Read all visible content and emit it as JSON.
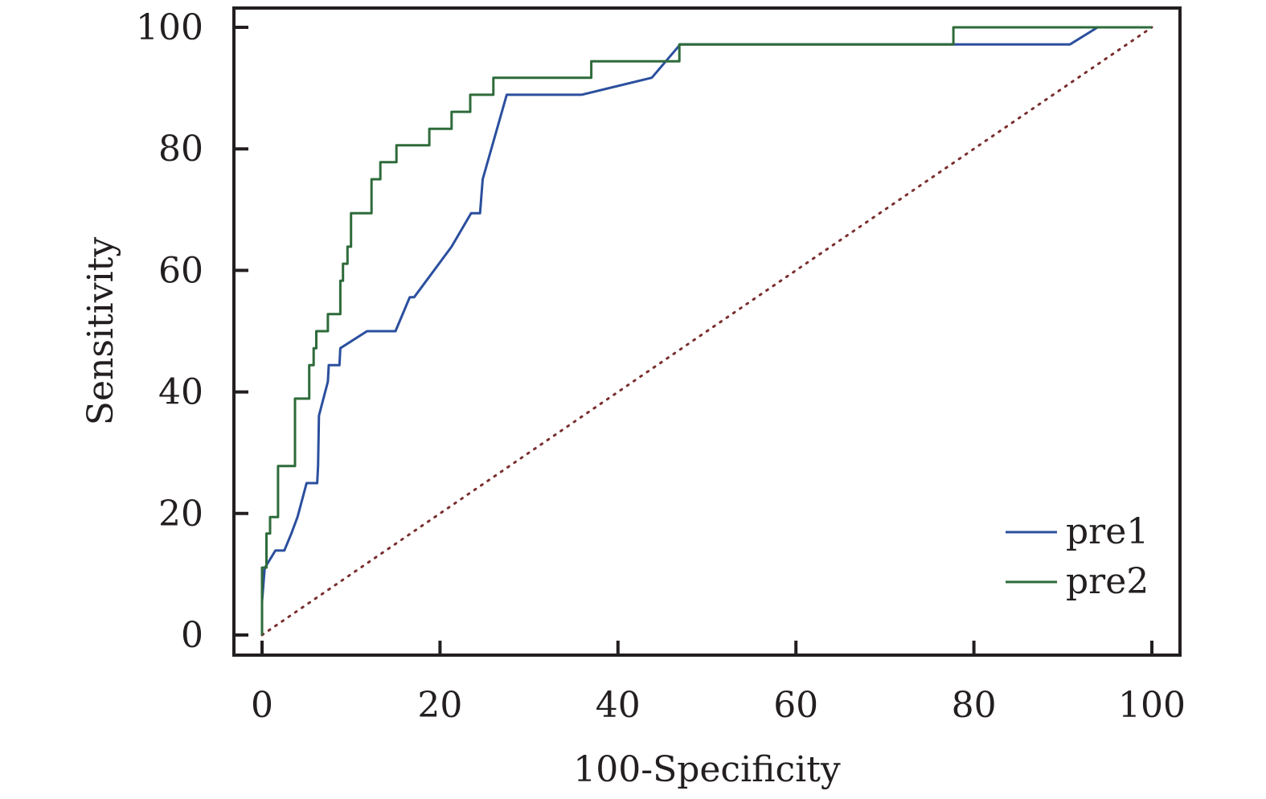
{
  "chart_data": {
    "type": "line",
    "title": "",
    "xlabel": "100-Specificity",
    "ylabel": "Sensitivity",
    "xlim": [
      0,
      100
    ],
    "ylim": [
      0,
      100
    ],
    "x_ticks": [
      0,
      20,
      40,
      60,
      80,
      100
    ],
    "y_ticks": [
      0,
      20,
      40,
      60,
      80,
      100
    ],
    "x_tick_labels": [
      "0",
      "20",
      "40",
      "60",
      "80",
      "100"
    ],
    "y_tick_labels": [
      "0",
      "20",
      "40",
      "60",
      "80",
      "100"
    ],
    "grid": false,
    "legend_position": "bottom-right",
    "reference_line": {
      "style": "dotted",
      "color": "#7a2e2e",
      "points": [
        [
          0,
          0
        ],
        [
          100,
          100
        ]
      ]
    },
    "series": [
      {
        "name": "pre1",
        "color": "#2b4f9e",
        "points": [
          [
            0,
            0
          ],
          [
            0,
            5.5
          ],
          [
            0.3,
            11
          ],
          [
            1.5,
            13.9
          ],
          [
            2.5,
            13.9
          ],
          [
            3.3,
            16.7
          ],
          [
            4,
            19.5
          ],
          [
            5,
            25
          ],
          [
            6.2,
            25
          ],
          [
            6.3,
            27.8
          ],
          [
            6.4,
            36.1
          ],
          [
            7.4,
            41.7
          ],
          [
            7.5,
            44.4
          ],
          [
            8.7,
            44.4
          ],
          [
            8.8,
            47.2
          ],
          [
            11.8,
            50
          ],
          [
            15,
            50
          ],
          [
            16.6,
            55.6
          ],
          [
            17.1,
            55.6
          ],
          [
            21.3,
            63.9
          ],
          [
            23.5,
            69.4
          ],
          [
            24.5,
            69.4
          ],
          [
            24.8,
            75
          ],
          [
            27.5,
            88.9
          ],
          [
            35.9,
            88.9
          ],
          [
            43.8,
            91.7
          ],
          [
            47,
            97.2
          ],
          [
            77.7,
            97.2
          ],
          [
            90.8,
            97.2
          ],
          [
            93.9,
            100
          ],
          [
            100,
            100
          ]
        ]
      },
      {
        "name": "pre2",
        "color": "#2e6b3a",
        "points": [
          [
            0,
            0
          ],
          [
            0,
            11.1
          ],
          [
            0.5,
            11.1
          ],
          [
            0.5,
            16.7
          ],
          [
            0.9,
            16.7
          ],
          [
            0.9,
            19.4
          ],
          [
            1.8,
            19.4
          ],
          [
            1.8,
            27.8
          ],
          [
            3.7,
            27.8
          ],
          [
            3.7,
            38.9
          ],
          [
            5.3,
            38.9
          ],
          [
            5.3,
            44.4
          ],
          [
            5.8,
            44.4
          ],
          [
            5.8,
            47.2
          ],
          [
            6.1,
            47.2
          ],
          [
            6.1,
            50
          ],
          [
            7.4,
            50
          ],
          [
            7.4,
            52.8
          ],
          [
            8.8,
            52.8
          ],
          [
            8.8,
            58.3
          ],
          [
            9.1,
            58.3
          ],
          [
            9.1,
            61.1
          ],
          [
            9.6,
            61.1
          ],
          [
            9.6,
            63.9
          ],
          [
            10,
            63.9
          ],
          [
            10,
            69.4
          ],
          [
            12.3,
            69.4
          ],
          [
            12.3,
            75
          ],
          [
            13.3,
            75
          ],
          [
            13.3,
            77.8
          ],
          [
            15.1,
            77.8
          ],
          [
            15.1,
            80.6
          ],
          [
            18.8,
            80.6
          ],
          [
            18.8,
            83.3
          ],
          [
            21.3,
            83.3
          ],
          [
            21.3,
            86.1
          ],
          [
            23.4,
            86.1
          ],
          [
            23.4,
            88.9
          ],
          [
            26,
            88.9
          ],
          [
            26,
            91.7
          ],
          [
            37,
            91.7
          ],
          [
            37,
            94.4
          ],
          [
            46.9,
            94.4
          ],
          [
            46.9,
            97.2
          ],
          [
            77.7,
            97.2
          ],
          [
            77.7,
            100
          ],
          [
            100,
            100
          ]
        ]
      }
    ]
  }
}
